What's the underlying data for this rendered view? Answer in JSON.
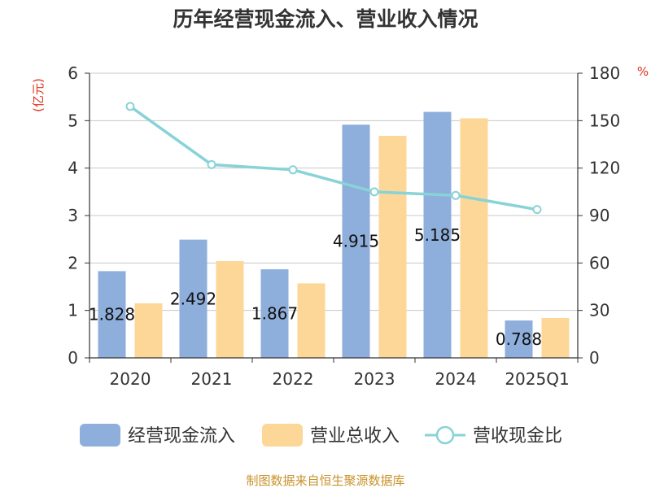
{
  "chart_data": {
    "type": "bar",
    "title": "历年经营现金流入、营业收入情况",
    "categories": [
      "2020",
      "2021",
      "2022",
      "2023",
      "2024",
      "2025Q1"
    ],
    "series": [
      {
        "name": "经营现金流入",
        "type": "bar",
        "axis": "left",
        "color": "#8eaedb",
        "values": [
          1.828,
          2.492,
          1.867,
          4.915,
          5.185,
          0.788
        ]
      },
      {
        "name": "营业总收入",
        "type": "bar",
        "axis": "left",
        "color": "#fdd798",
        "values": [
          1.15,
          2.04,
          1.57,
          4.68,
          5.05,
          0.84
        ]
      },
      {
        "name": "营收现金比",
        "type": "line",
        "axis": "right",
        "color": "#88d3d7",
        "values": [
          159.0,
          122.2,
          118.9,
          105.0,
          102.7,
          93.8
        ]
      }
    ],
    "data_labels": [
      "1.828",
      "2.492",
      "1.867",
      "4.915",
      "5.185",
      "0.788"
    ],
    "left_axis": {
      "unit": "(亿元)",
      "min": 0,
      "max": 6,
      "ticks": [
        "0",
        "1",
        "2",
        "3",
        "4",
        "5",
        "6"
      ]
    },
    "right_axis": {
      "unit": "%",
      "min": 0,
      "max": 180,
      "ticks": [
        "0",
        "30",
        "60",
        "90",
        "120",
        "150",
        "180"
      ]
    },
    "grid": true,
    "legend_position": "bottom"
  },
  "source": "制图数据来自恒生聚源数据库"
}
